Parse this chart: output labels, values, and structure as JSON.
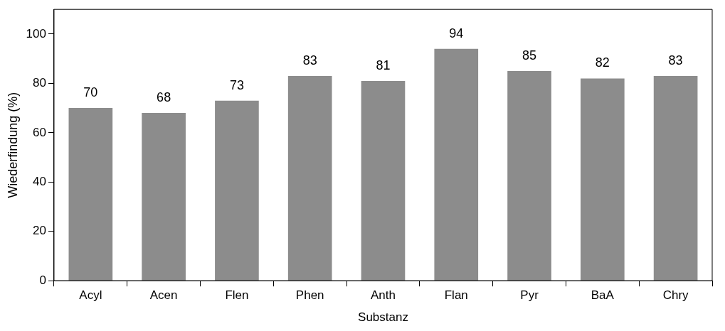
{
  "chart_data": {
    "type": "bar",
    "xlabel": "Substanz",
    "ylabel": "Wiederfindung (%)",
    "categories": [
      "Acyl",
      "Acen",
      "Flen",
      "Phen",
      "Anth",
      "Flan",
      "Pyr",
      "BaA",
      "Chry"
    ],
    "values": [
      70,
      68,
      73,
      83,
      81,
      94,
      85,
      82,
      83
    ],
    "color": "#8c8c8c",
    "ylim": [
      0,
      110
    ],
    "yticks": [
      0,
      20,
      40,
      60,
      80,
      100
    ],
    "grid": false,
    "legend": false,
    "data_labels": true
  }
}
